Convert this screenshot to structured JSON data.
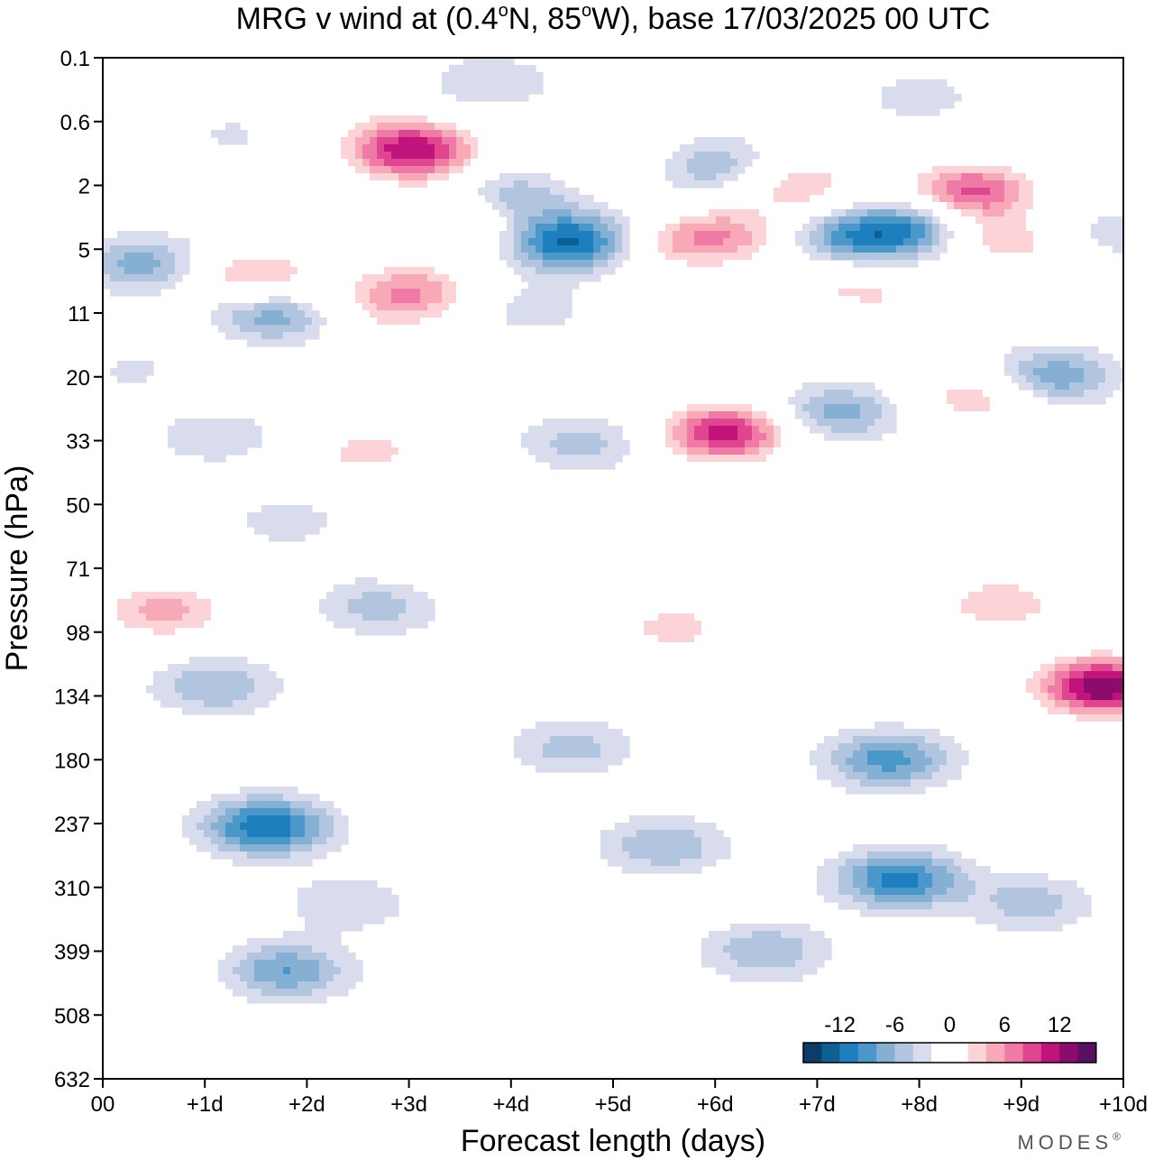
{
  "chart_data": {
    "type": "heatmap",
    "title": "MRG v wind at (0.4°N, 85°W),  base 17/03/2025  00 UTC",
    "title_parts": {
      "lead": "MRG v wind at (0.4",
      "deg1": "o",
      "mid": "N, 85",
      "deg2": "o",
      "tail": "W),  base 17/03/2025  00 UTC"
    },
    "xlabel": "Forecast length (days)",
    "ylabel": "Pressure (hPa)",
    "x_ticks": [
      "00",
      "+1d",
      "+2d",
      "+3d",
      "+4d",
      "+5d",
      "+6d",
      "+7d",
      "+8d",
      "+9d",
      "+10d"
    ],
    "xlim": [
      0,
      10
    ],
    "y_ticks": [
      "0.1",
      "0.6",
      "2",
      "5",
      "11",
      "20",
      "33",
      "50",
      "71",
      "98",
      "134",
      "180",
      "237",
      "310",
      "399",
      "508",
      "632"
    ],
    "colorbar": {
      "tick_labels": [
        "-12",
        "-6",
        "0",
        "6",
        "12"
      ],
      "levels": [
        -16,
        -14,
        -12,
        -10,
        -8,
        -6,
        -4,
        -2,
        2,
        4,
        6,
        8,
        10,
        12,
        14,
        16
      ],
      "colors": [
        "#0b3d66",
        "#0e5f93",
        "#1e7fbf",
        "#4a98c9",
        "#85afd3",
        "#b2c5df",
        "#d9dcec",
        "#ffffff",
        "#ffffff",
        "#fcd3d6",
        "#f7a9b7",
        "#ef7aa5",
        "#e0458f",
        "#c0147c",
        "#8c0c6e",
        "#5a1060"
      ]
    },
    "blobs": [
      {
        "x": 0.4,
        "y": 0.5,
        "v": 4
      },
      {
        "x": 1.2,
        "y": 0.7,
        "v": -3
      },
      {
        "x": 2.0,
        "y": 0.3,
        "v": 4
      },
      {
        "x": 3.0,
        "y": 1.0,
        "v": 13
      },
      {
        "x": 3.3,
        "y": 1.5,
        "v": 2
      },
      {
        "x": 3.5,
        "y": 3.3,
        "v": 5
      },
      {
        "x": 3.8,
        "y": 0.2,
        "v": -4
      },
      {
        "x": 4.0,
        "y": 2.3,
        "v": -6
      },
      {
        "x": 4.6,
        "y": 4.5,
        "v": -13
      },
      {
        "x": 4.9,
        "y": 1.1,
        "v": 3
      },
      {
        "x": 6.0,
        "y": 1.4,
        "v": -6
      },
      {
        "x": 6.1,
        "y": 4.1,
        "v": 7
      },
      {
        "x": 5.5,
        "y": 4.8,
        "v": 4
      },
      {
        "x": 6.8,
        "y": 2.0,
        "v": 6
      },
      {
        "x": 7.3,
        "y": 4.5,
        "v": -8
      },
      {
        "x": 7.9,
        "y": 3.7,
        "v": -9
      },
      {
        "x": 8.0,
        "y": 0.3,
        "v": -3
      },
      {
        "x": 8.5,
        "y": 2.2,
        "v": 11
      },
      {
        "x": 8.8,
        "y": 4.8,
        "v": 7
      },
      {
        "x": 9.9,
        "y": 4.0,
        "v": -3
      },
      {
        "x": 0.4,
        "y": 6.0,
        "v": -7
      },
      {
        "x": 1.5,
        "y": 7.0,
        "v": 7
      },
      {
        "x": 1.6,
        "y": 11.4,
        "v": -10
      },
      {
        "x": 1.4,
        "y": 12.2,
        "v": 3
      },
      {
        "x": 3.0,
        "y": 8.5,
        "v": 8
      },
      {
        "x": 2.7,
        "y": 12.0,
        "v": 2
      },
      {
        "x": 4.2,
        "y": 10.5,
        "v": -3
      },
      {
        "x": 5.8,
        "y": 15.8,
        "v": 3
      },
      {
        "x": 6.6,
        "y": 11.5,
        "v": 2
      },
      {
        "x": 7.2,
        "y": 7.0,
        "v": 4
      },
      {
        "x": 7.8,
        "y": 9.5,
        "v": 3
      },
      {
        "x": 8.7,
        "y": 6.5,
        "v": -3
      },
      {
        "x": 0.4,
        "y": 19.5,
        "v": -3
      },
      {
        "x": 0.9,
        "y": 22.0,
        "v": 2
      },
      {
        "x": 1.1,
        "y": 31.5,
        "v": -4
      },
      {
        "x": 2.6,
        "y": 35.5,
        "v": 5
      },
      {
        "x": 4.7,
        "y": 33.5,
        "v": -5
      },
      {
        "x": 6.1,
        "y": 31.0,
        "v": 13
      },
      {
        "x": 7.2,
        "y": 26.5,
        "v": -7
      },
      {
        "x": 8.6,
        "y": 23.5,
        "v": 6
      },
      {
        "x": 9.3,
        "y": 20.0,
        "v": -8
      },
      {
        "x": 0.6,
        "y": 88.0,
        "v": 7
      },
      {
        "x": 1.8,
        "y": 55.0,
        "v": -3
      },
      {
        "x": 2.7,
        "y": 86.0,
        "v": -5
      },
      {
        "x": 3.6,
        "y": 68.0,
        "v": 4
      },
      {
        "x": 5.6,
        "y": 96.0,
        "v": 5
      },
      {
        "x": 8.8,
        "y": 85.0,
        "v": 6
      },
      {
        "x": 9.8,
        "y": 128.0,
        "v": 16
      },
      {
        "x": 1.1,
        "y": 128.0,
        "v": -6
      },
      {
        "x": 0.4,
        "y": 180.0,
        "v": 3
      },
      {
        "x": 1.6,
        "y": 240.0,
        "v": -12
      },
      {
        "x": 1.8,
        "y": 430.0,
        "v": -8
      },
      {
        "x": 2.4,
        "y": 330.0,
        "v": -4
      },
      {
        "x": 4.6,
        "y": 170.0,
        "v": -5
      },
      {
        "x": 5.5,
        "y": 260.0,
        "v": -6
      },
      {
        "x": 6.5,
        "y": 400.0,
        "v": -6
      },
      {
        "x": 7.7,
        "y": 180.0,
        "v": -9
      },
      {
        "x": 7.8,
        "y": 300.0,
        "v": -11
      },
      {
        "x": 9.1,
        "y": 330.0,
        "v": -5
      },
      {
        "x": 0.2,
        "y": 420.0,
        "v": 4
      },
      {
        "x": 4.9,
        "y": 630.0,
        "v": 3
      },
      {
        "x": 8.5,
        "y": 560.0,
        "v": 3
      }
    ]
  },
  "branding": {
    "logo_text": "MODES",
    "mark": "®"
  }
}
